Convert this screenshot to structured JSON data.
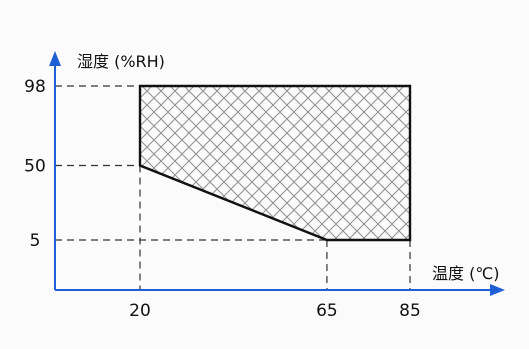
{
  "chart_data": {
    "type": "area",
    "title": "",
    "ylabel": "湿度 (%RH)",
    "xlabel": "温度 (℃)",
    "x_ticks": [
      20,
      65,
      85
    ],
    "y_ticks": [
      5,
      50,
      98
    ],
    "xlim": [
      0,
      92
    ],
    "ylim": [
      -16,
      118
    ],
    "grid": false,
    "region": {
      "fill_pattern": "crosshatch",
      "points": [
        {
          "x": 20,
          "y": 98
        },
        {
          "x": 85,
          "y": 98
        },
        {
          "x": 85,
          "y": 5
        },
        {
          "x": 65,
          "y": 5
        },
        {
          "x": 20,
          "y": 50
        }
      ]
    },
    "guide_lines": true
  },
  "colors": {
    "axis": "#1f5fd6",
    "outline": "#111111",
    "hatch": "#8f8f8f",
    "dash": "#333333",
    "background": "#fbfbfb"
  }
}
